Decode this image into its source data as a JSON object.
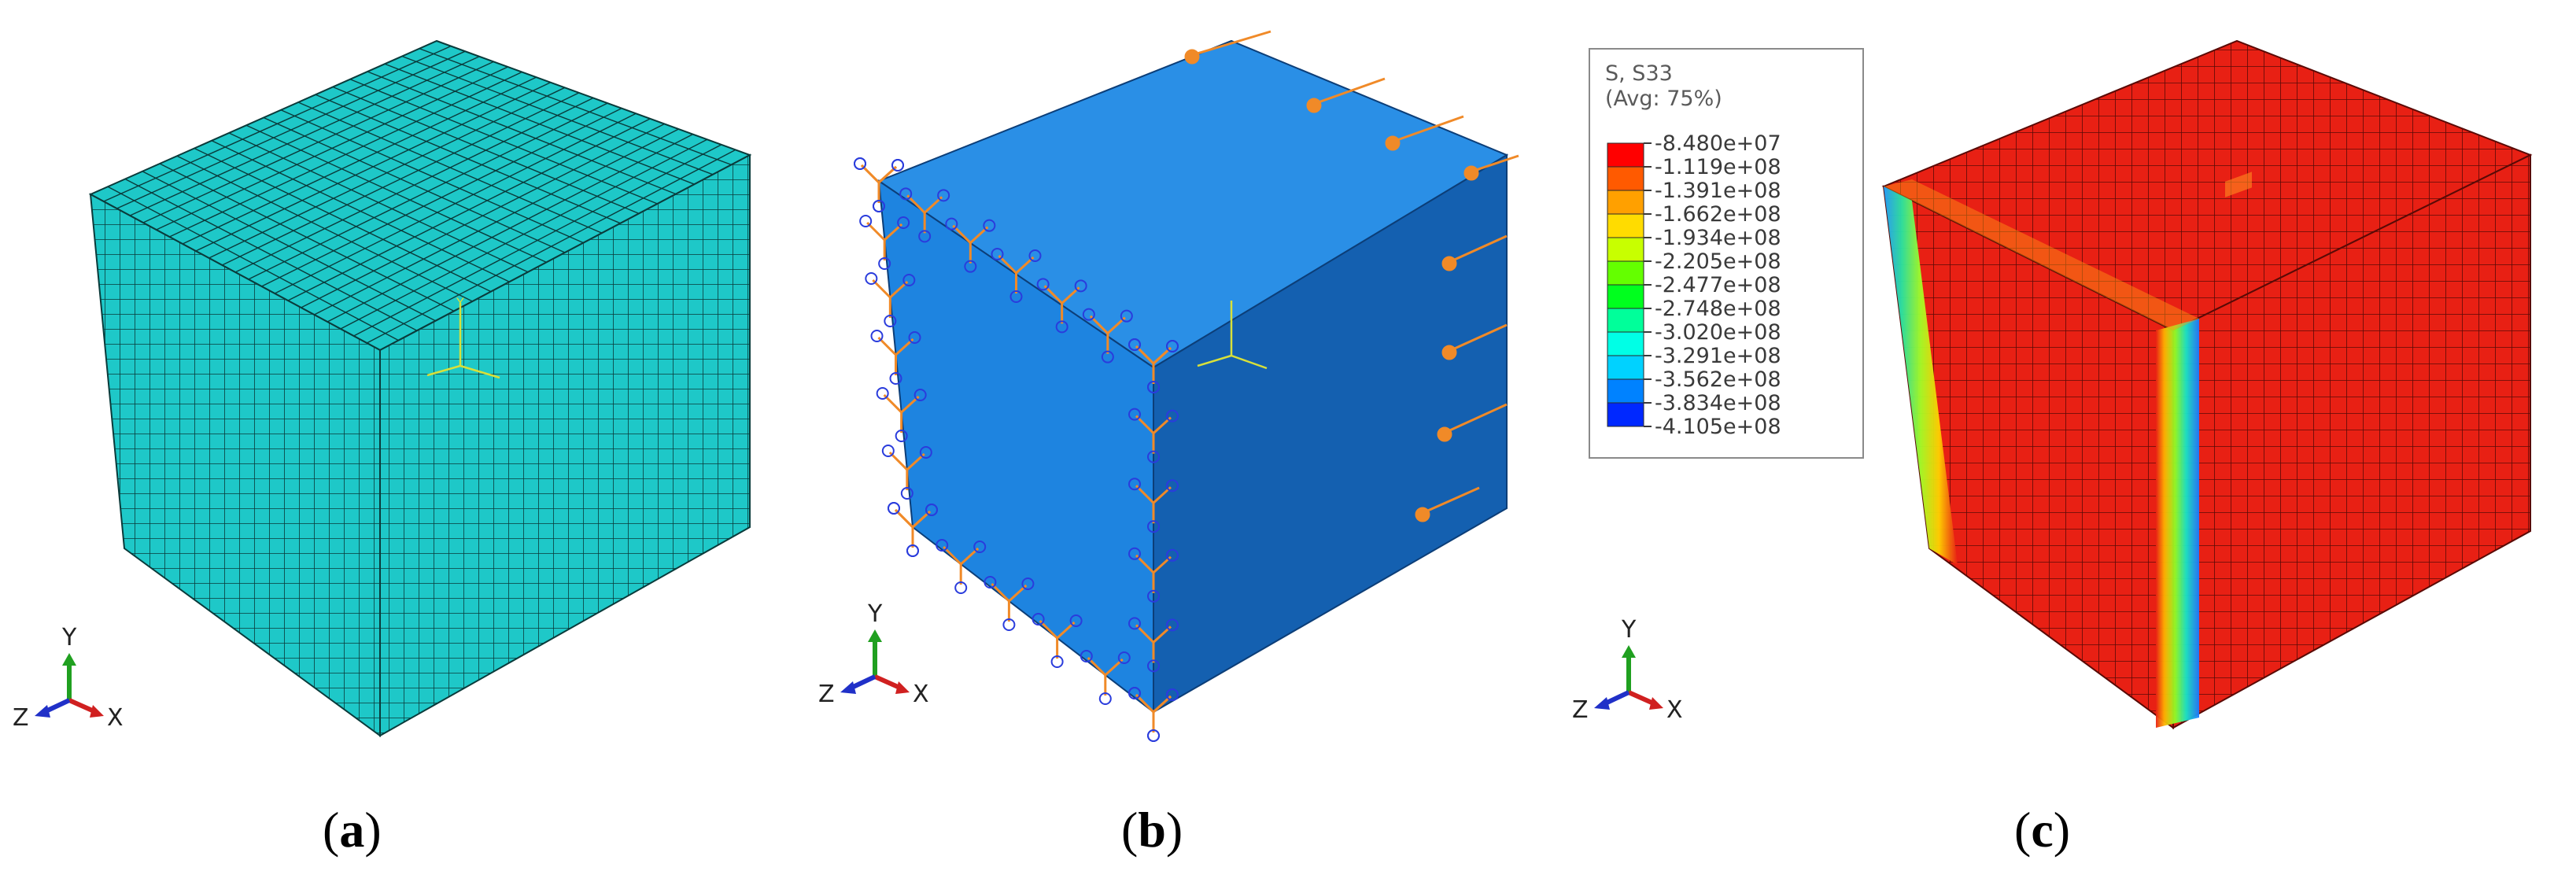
{
  "panels": [
    {
      "letter": "a",
      "open": "(",
      "close": ")"
    },
    {
      "letter": "b",
      "open": "(",
      "close": ")"
    },
    {
      "letter": "c",
      "open": "(",
      "close": ")"
    }
  ],
  "triad_labels": {
    "x": "X",
    "y": "Y",
    "z": "Z"
  },
  "local_csys_labels": {
    "y": "Y",
    "z": "Z",
    "x": "X"
  },
  "legend": {
    "title_line1": "S, S33",
    "title_line2": "(Avg: 75%)",
    "values": [
      "-8.480e+07",
      "-1.119e+08",
      "-1.391e+08",
      "-1.662e+08",
      "-1.934e+08",
      "-2.205e+08",
      "-2.477e+08",
      "-2.748e+08",
      "-3.020e+08",
      "-3.291e+08",
      "-3.562e+08",
      "-3.834e+08",
      "-4.105e+08"
    ],
    "band_colors": [
      "#ff0000",
      "#ff5a00",
      "#ffa000",
      "#ffdc00",
      "#c8ff00",
      "#64ff00",
      "#00ff1e",
      "#00ff9a",
      "#00ffe6",
      "#00d2ff",
      "#0082ff",
      "#0028ff"
    ]
  },
  "colors": {
    "mesh_fill": "#1ec8c8",
    "mesh_line": "#0a3b3b",
    "model_front": "#1e84e0",
    "model_top": "#2a8fe6",
    "model_right": "#1460b0",
    "load_arrow": "#f08a28",
    "bc_symbol": "#2a3cdc",
    "stress_red": "#e82014",
    "stress_line": "#5a0a06",
    "triad_x": "#d02020",
    "triad_y": "#20a020",
    "triad_z": "#2030c8"
  }
}
